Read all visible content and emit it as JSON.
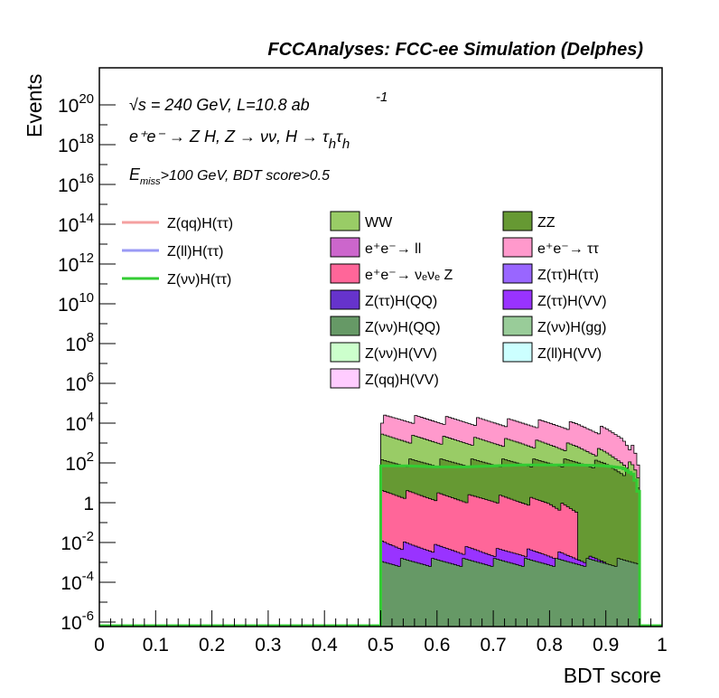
{
  "chart_data": {
    "type": "area",
    "title": "FCCAnalyses: FCC-ee Simulation (Delphes)",
    "xlabel": "BDT score",
    "ylabel": "Events",
    "x_range": [
      0,
      1
    ],
    "y_range": [
      1e-06,
      1e+21
    ],
    "log_y": true,
    "x_ticks": [
      "0",
      "0.1",
      "0.2",
      "0.3",
      "0.4",
      "0.5",
      "0.6",
      "0.7",
      "0.8",
      "0.9",
      "1"
    ],
    "y_ticks": [
      {
        "base": "10",
        "exp": "20"
      },
      {
        "base": "10",
        "exp": "18"
      },
      {
        "base": "10",
        "exp": "16"
      },
      {
        "base": "10",
        "exp": "14"
      },
      {
        "base": "10",
        "exp": "12"
      },
      {
        "base": "10",
        "exp": "10"
      },
      {
        "base": "10",
        "exp": "8"
      },
      {
        "base": "10",
        "exp": "6"
      },
      {
        "base": "10",
        "exp": "4"
      },
      {
        "base": "10",
        "exp": "2"
      },
      {
        "base": "1",
        "exp": ""
      },
      {
        "base": "10",
        "exp": "-2"
      },
      {
        "base": "10",
        "exp": "-4"
      },
      {
        "base": "10",
        "exp": "-6"
      }
    ],
    "y_tick_values": [
      20,
      18,
      16,
      14,
      12,
      10,
      8,
      6,
      4,
      2,
      0,
      -2,
      -4,
      -6
    ],
    "annotations": {
      "energy": "√s = 240 GeV, L=10.8 ab",
      "energy_exp": "-1",
      "process": "e⁺e⁻ → Z H, Z → νν, H → τ",
      "sub_h1": "h",
      "tau2": "τ",
      "sub_h2": "h",
      "cut_e": "E",
      "cut_sub": "miss",
      "cut_rest": ">100 GeV, BDT score>0.5"
    },
    "legend": "upper area, three columns",
    "signal_legend": [
      {
        "label": "Z(qq)H(ττ)",
        "color": "#f5a0a0"
      },
      {
        "label": "Z(ll)H(ττ)",
        "color": "#9a9af5"
      },
      {
        "label": "Z(νν)H(ττ)",
        "color": "#33cc33"
      }
    ],
    "background_legend": [
      {
        "label": "WW",
        "color": "#99cc66"
      },
      {
        "label": "ZZ",
        "color": "#669933"
      },
      {
        "label": "e⁺e⁻→ ll",
        "color": "#cc66cc"
      },
      {
        "label": "e⁺e⁻→ ττ",
        "color": "#ff99cc"
      },
      {
        "label": "e⁺e⁻→ νₑνₑ Z",
        "color": "#ff6699"
      },
      {
        "label": "Z(ττ)H(ττ)",
        "color": "#9966ff"
      },
      {
        "label": "Z(ττ)H(QQ)",
        "color": "#6633cc"
      },
      {
        "label": "Z(ττ)H(VV)",
        "color": "#9933ff"
      },
      {
        "label": "Z(νν)H(QQ)",
        "color": "#669966"
      },
      {
        "label": "Z(νν)H(gg)",
        "color": "#99cc99"
      },
      {
        "label": "Z(νν)H(VV)",
        "color": "#ccffcc"
      },
      {
        "label": "Z(ll)H(VV)",
        "color": "#ccffff"
      },
      {
        "label": "Z(qq)H(VV)",
        "color": "#ffccff"
      }
    ],
    "stacked_totals": [
      {
        "name": "e⁺e⁻→ ττ",
        "color": "#ff99cc",
        "x": [
          0.5,
          0.55,
          0.6,
          0.65,
          0.7,
          0.75,
          0.8,
          0.85,
          0.9,
          0.93,
          0.95,
          0.96
        ],
        "log10_y": [
          4.2,
          4.2,
          4.15,
          4.1,
          4.05,
          4.0,
          3.95,
          3.85,
          3.6,
          3.3,
          2.6,
          1.5
        ]
      },
      {
        "name": "WW",
        "color": "#99cc66",
        "x": [
          0.5,
          0.55,
          0.6,
          0.65,
          0.7,
          0.75,
          0.8,
          0.85,
          0.9,
          0.93,
          0.95,
          0.96
        ],
        "log10_y": [
          3.25,
          3.2,
          3.15,
          3.1,
          3.05,
          3.0,
          2.9,
          2.75,
          2.45,
          2.1,
          1.7,
          1.0
        ]
      },
      {
        "name": "ZZ",
        "color": "#669933",
        "x": [
          0.5,
          0.55,
          0.6,
          0.65,
          0.7,
          0.75,
          0.8,
          0.85,
          0.9,
          0.93,
          0.95,
          0.96
        ],
        "log10_y": [
          2.0,
          2.0,
          2.0,
          2.0,
          2.0,
          2.0,
          2.0,
          2.0,
          1.9,
          1.6,
          1.3,
          0.5
        ]
      },
      {
        "name": "e⁺e⁻→ νₑνₑ Z",
        "color": "#ff6699",
        "x": [
          0.5,
          0.55,
          0.6,
          0.65,
          0.7,
          0.75,
          0.8,
          0.85
        ],
        "log10_y": [
          0.5,
          0.4,
          0.3,
          0.2,
          0.2,
          0.1,
          0.0,
          -0.5
        ]
      },
      {
        "name": "Z(ττ)H(VV)",
        "color": "#9933ff",
        "x": [
          0.5,
          0.55,
          0.6,
          0.65,
          0.7,
          0.75,
          0.8,
          0.85,
          0.9
        ],
        "log10_y": [
          -2.0,
          -2.2,
          -2.3,
          -2.4,
          -2.5,
          -2.5,
          -2.6,
          -2.8,
          -3.0
        ]
      },
      {
        "name": "Z(νν)H(QQ)",
        "color": "#669966",
        "x": [
          0.5,
          0.6,
          0.7,
          0.8,
          0.9,
          0.96
        ],
        "log10_y": [
          -3.0,
          -3.0,
          -3.0,
          -3.0,
          -3.0,
          -3.0
        ]
      }
    ],
    "signal_line": {
      "name": "Z(νν)H(ττ)",
      "color": "#33cc33",
      "x": [
        0.5,
        0.55,
        0.6,
        0.65,
        0.7,
        0.75,
        0.8,
        0.85,
        0.9,
        0.93,
        0.95,
        0.96
      ],
      "log10_y": [
        1.85,
        1.85,
        1.8,
        1.8,
        1.85,
        1.9,
        1.9,
        1.9,
        1.85,
        1.75,
        1.4,
        0.3
      ]
    },
    "x_lower": 0.5,
    "x_upper": 0.965
  }
}
